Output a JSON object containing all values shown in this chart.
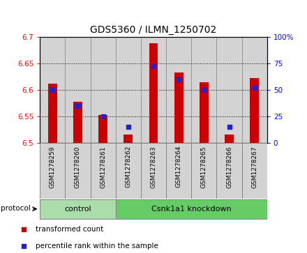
{
  "title": "GDS5360 / ILMN_1250702",
  "samples": [
    "GSM1278259",
    "GSM1278260",
    "GSM1278261",
    "GSM1278262",
    "GSM1278263",
    "GSM1278264",
    "GSM1278265",
    "GSM1278266",
    "GSM1278267"
  ],
  "red_values": [
    6.612,
    6.578,
    6.553,
    6.516,
    6.688,
    6.632,
    6.614,
    6.516,
    6.622
  ],
  "blue_percentiles": [
    50,
    35,
    25,
    15,
    72,
    60,
    50,
    15,
    52
  ],
  "ylim_left": [
    6.5,
    6.7
  ],
  "ylim_right": [
    0,
    100
  ],
  "yticks_left": [
    6.5,
    6.55,
    6.6,
    6.65,
    6.7
  ],
  "yticks_right": [
    0,
    25,
    50,
    75,
    100
  ],
  "control_indices": [
    0,
    1,
    2
  ],
  "knockdown_indices": [
    3,
    4,
    5,
    6,
    7,
    8
  ],
  "control_label": "control",
  "knockdown_label": "Csnk1a1 knockdown",
  "protocol_label": "protocol",
  "legend_red": "transformed count",
  "legend_blue": "percentile rank within the sample",
  "bar_color": "#cc0000",
  "dot_color": "#2222cc",
  "bg_color": "#d3d3d3",
  "ctrl_color": "#aaddaa",
  "csnk_color": "#66cc66",
  "title_fontsize": 10,
  "tick_fontsize": 7.5,
  "sample_fontsize": 6.5
}
